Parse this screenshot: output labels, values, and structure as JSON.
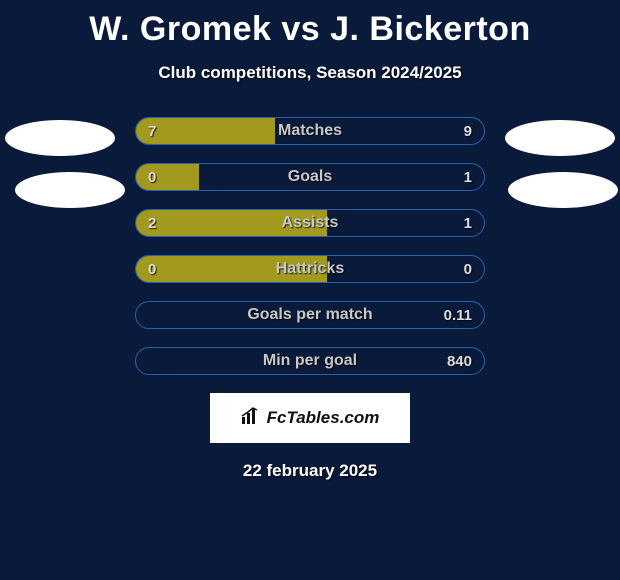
{
  "title": "W. Gromek vs J. Bickerton",
  "subtitle": "Club competitions, Season 2024/2025",
  "date": "22 february 2025",
  "branding": "FcTables.com",
  "background_color": "#0a1a3a",
  "bar_border_color": "#2d5fa8",
  "left_color": "#a29a1e",
  "right_color": "#2d5fa8",
  "label_color": "#c8c8c8",
  "value_color": "#dcdcdc",
  "bars": [
    {
      "label": "Matches",
      "left_value": "7",
      "right_value": "9",
      "left_pct": 40,
      "right_pct": 0
    },
    {
      "label": "Goals",
      "left_value": "0",
      "right_value": "1",
      "left_pct": 18,
      "right_pct": 0
    },
    {
      "label": "Assists",
      "left_value": "2",
      "right_value": "1",
      "left_pct": 55,
      "right_pct": 0
    },
    {
      "label": "Hattricks",
      "left_value": "0",
      "right_value": "0",
      "left_pct": 55,
      "right_pct": 0
    },
    {
      "label": "Goals per match",
      "left_value": "",
      "right_value": "0.11",
      "left_pct": 0,
      "right_pct": 0
    },
    {
      "label": "Min per goal",
      "left_value": "",
      "right_value": "840",
      "left_pct": 0,
      "right_pct": 0
    }
  ]
}
